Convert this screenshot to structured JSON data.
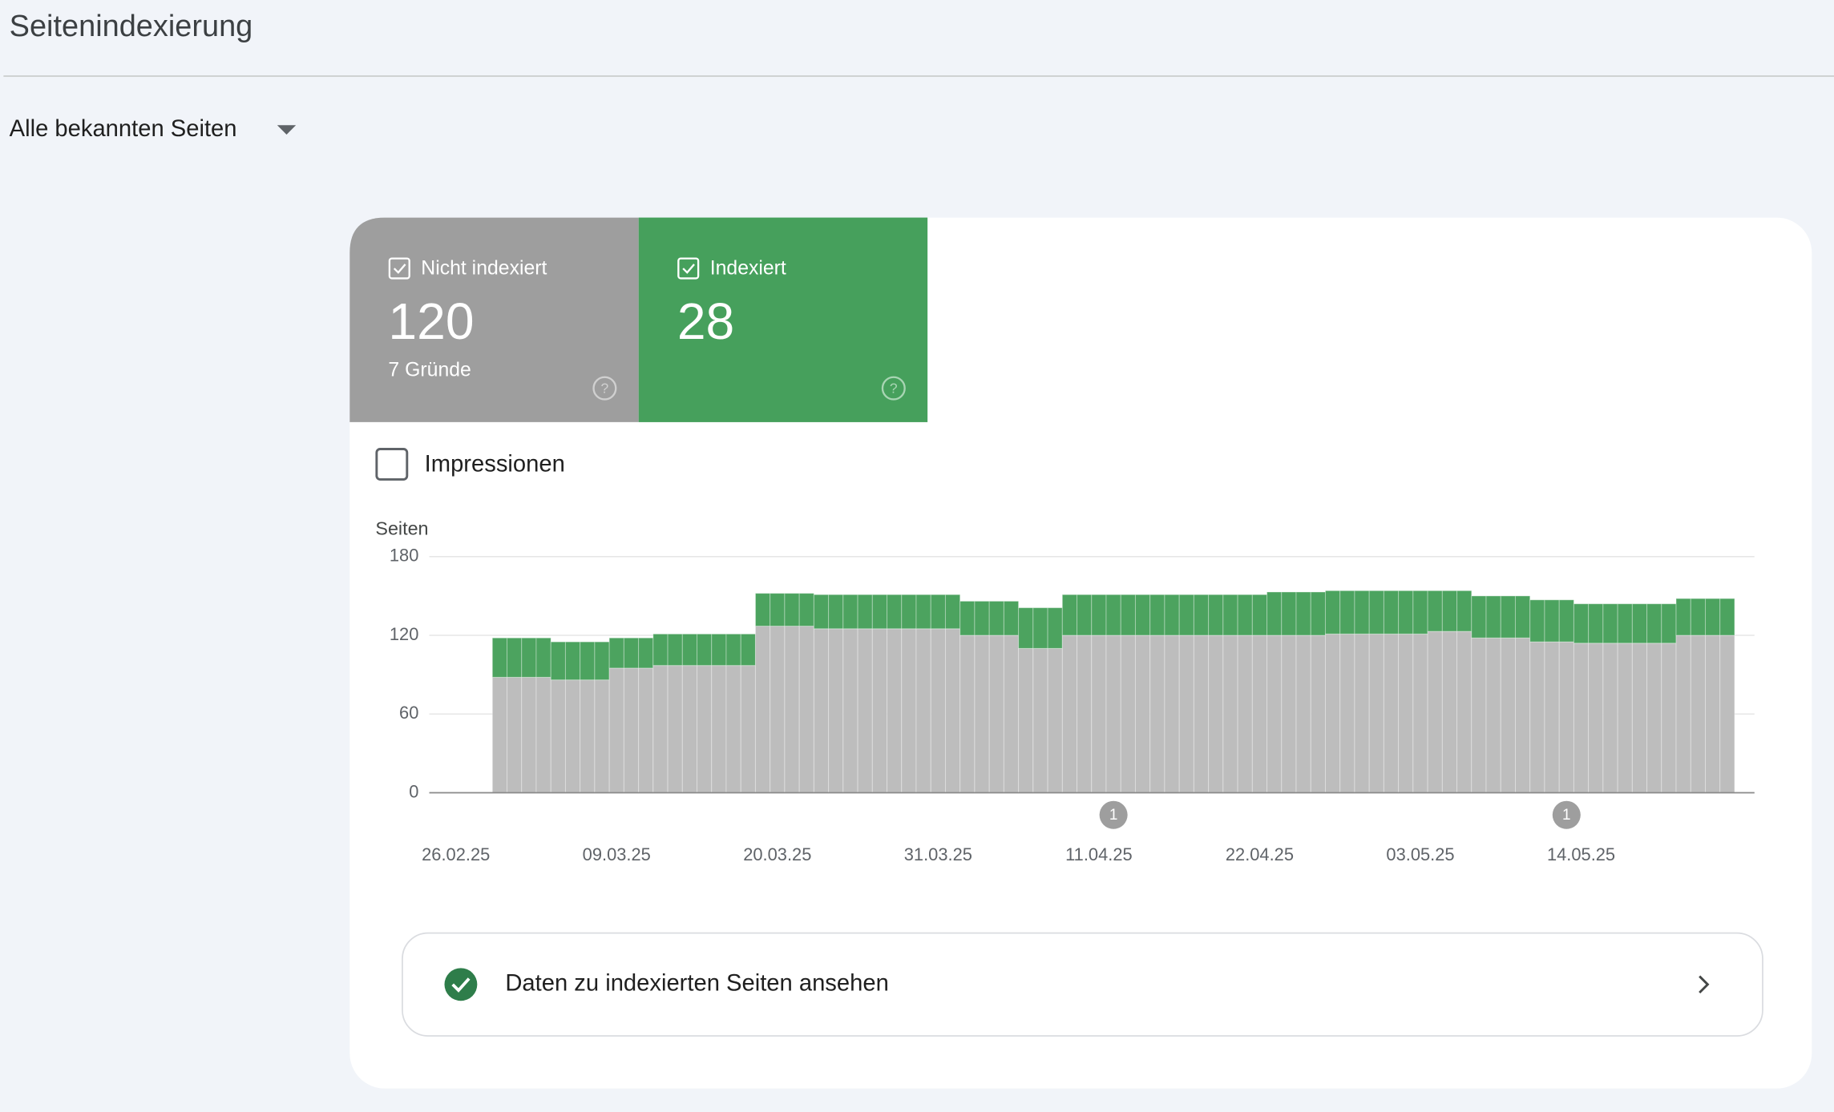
{
  "header": {
    "title": "Seitenindexierung"
  },
  "filter": {
    "label": "Alle bekannten Seiten"
  },
  "cards": [
    {
      "value": "120",
      "sub": "7 Gründe"
    },
    {
      "value": "28"
    }
  ],
  "toggle": {
    "label": "Impressionen"
  },
  "chart_data": {
    "type": "bar",
    "stacked": true,
    "y_label": "Seiten",
    "categories": [
      "26.02.25",
      null,
      null,
      null,
      null,
      null,
      null,
      null,
      null,
      null,
      null,
      "09.03.25",
      null,
      null,
      null,
      null,
      null,
      null,
      null,
      null,
      null,
      null,
      "20.03.25",
      null,
      null,
      null,
      null,
      null,
      null,
      null,
      null,
      null,
      null,
      "31.03.25",
      null,
      null,
      null,
      null,
      null,
      null,
      null,
      null,
      null,
      null,
      "11.04.25",
      null,
      null,
      null,
      null,
      null,
      null,
      null,
      null,
      null,
      null,
      "22.04.25",
      null,
      null,
      null,
      null,
      null,
      null,
      null,
      null,
      null,
      null,
      "03.05.25",
      null,
      null,
      null,
      null,
      null,
      null,
      null,
      null,
      null,
      null,
      "14.05.25",
      null,
      null,
      null,
      null,
      null,
      null,
      null,
      null,
      null,
      null
    ],
    "series": [
      {
        "name": "Nicht indexiert",
        "color": "#bdbdbd",
        "values": [
          null,
          null,
          null,
          88,
          88,
          88,
          88,
          86,
          86,
          86,
          86,
          95,
          95,
          95,
          97,
          97,
          97,
          97,
          97,
          97,
          97,
          127,
          127,
          127,
          127,
          125,
          125,
          125,
          125,
          125,
          125,
          125,
          125,
          125,
          125,
          120,
          120,
          120,
          120,
          110,
          110,
          110,
          120,
          120,
          120,
          120,
          120,
          120,
          120,
          120,
          120,
          120,
          120,
          120,
          120,
          120,
          120,
          120,
          120,
          120,
          121,
          121,
          121,
          121,
          121,
          121,
          121,
          123,
          123,
          123,
          118,
          118,
          118,
          118,
          115,
          115,
          115,
          114,
          114,
          114,
          114,
          114,
          114,
          114,
          120,
          120,
          120,
          120
        ]
      },
      {
        "name": "Indexiert",
        "color": "#4ca35f",
        "values": [
          null,
          null,
          null,
          30,
          30,
          30,
          30,
          29,
          29,
          29,
          29,
          23,
          23,
          23,
          24,
          24,
          24,
          24,
          24,
          24,
          24,
          25,
          25,
          25,
          25,
          26,
          26,
          26,
          26,
          26,
          26,
          26,
          26,
          26,
          26,
          26,
          26,
          26,
          26,
          31,
          31,
          31,
          31,
          31,
          31,
          31,
          31,
          31,
          31,
          31,
          31,
          31,
          31,
          31,
          31,
          31,
          33,
          33,
          33,
          33,
          33,
          33,
          33,
          33,
          33,
          33,
          33,
          31,
          31,
          31,
          32,
          32,
          32,
          32,
          32,
          32,
          32,
          30,
          30,
          30,
          30,
          30,
          30,
          30,
          28,
          28,
          28,
          28
        ]
      }
    ],
    "ylim": [
      0,
      180
    ],
    "yticks": [
      0,
      60,
      120,
      180
    ],
    "grid": true,
    "annotations": [
      {
        "index": 45,
        "text": "1"
      },
      {
        "index": 76,
        "text": "1"
      }
    ]
  },
  "link": {
    "label": "Daten zu indexierten Seiten ansehen"
  }
}
